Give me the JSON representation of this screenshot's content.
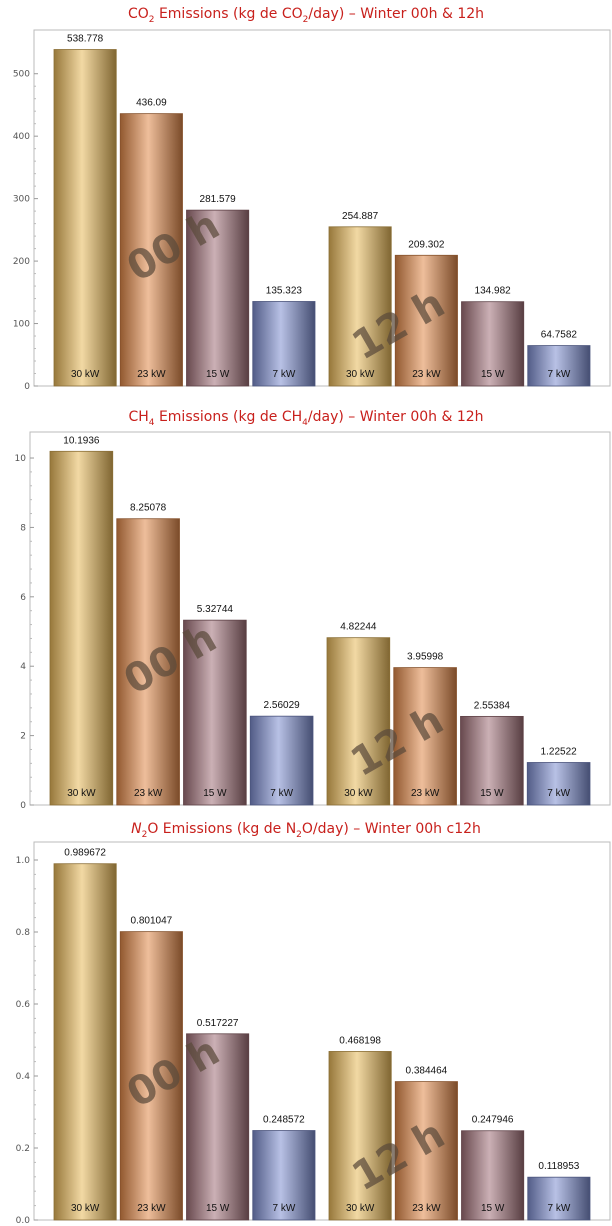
{
  "colors": {
    "title": "#c8201c",
    "gold": "#e8b95a",
    "orange": "#e0894a",
    "mauve": "#a07078",
    "blue": "#7e8ed0"
  },
  "chart_data": [
    {
      "type": "bar",
      "title": {
        "pre": "CO",
        "sub": "2",
        "mid": " Emissions (kg de CO",
        "sub2": "2",
        "post": "/day) – Winter 00h & 12h"
      },
      "groups": [
        "00 h",
        "12 h"
      ],
      "categories": [
        "30 kW",
        "23 kW",
        "15 W",
        "7 kW",
        "30 kW",
        "23 kW",
        "15 W",
        "7 kW"
      ],
      "values": [
        538.778,
        436.09,
        281.579,
        135.323,
        254.887,
        209.302,
        134.982,
        64.7582
      ],
      "value_labels": [
        "538.778",
        "436.09",
        "281.579",
        "135.323",
        "254.887",
        "209.302",
        "134.982",
        "64.7582"
      ],
      "ylim": [
        0,
        570
      ],
      "yticks": [
        0,
        100,
        200,
        300,
        400,
        500
      ],
      "ytick_labels": [
        "0",
        "100",
        "200",
        "300",
        "400",
        "500"
      ]
    },
    {
      "type": "bar",
      "title": {
        "pre": "CH",
        "sub": "4",
        "mid": "  Emissions (kg de CH",
        "sub2": "4",
        "post": "/day) – Winter 00h & 12h"
      },
      "groups": [
        "00 h",
        "12 h"
      ],
      "categories": [
        "30 kW",
        "23 kW",
        "15 W",
        "7 kW",
        "30 kW",
        "23 kW",
        "15 W",
        "7 kW"
      ],
      "values": [
        10.1936,
        8.25078,
        5.32744,
        2.56029,
        4.82244,
        3.95998,
        2.55384,
        1.22522
      ],
      "value_labels": [
        "10.1936",
        "8.25078",
        "5.32744",
        "2.56029",
        "4.82244",
        "3.95998",
        "2.55384",
        "1.22522"
      ],
      "ylim": [
        0,
        10.75
      ],
      "yticks": [
        0,
        2,
        4,
        6,
        8,
        10
      ],
      "ytick_labels": [
        "0",
        "2",
        "4",
        "6",
        "8",
        "10"
      ]
    },
    {
      "type": "bar",
      "title": {
        "pre": "N",
        "sub": "2",
        "mid": "O Emissions (kg de N",
        "sub2": "2",
        "post": "O/day) – Winter 00h c12h"
      },
      "groups": [
        "00 h",
        "12 h"
      ],
      "categories": [
        "30 kW",
        "23 kW",
        "15 W",
        "7 kW",
        "30 kW",
        "23 kW",
        "15 W",
        "7 kW"
      ],
      "values": [
        0.989672,
        0.801047,
        0.517227,
        0.248572,
        0.468198,
        0.384464,
        0.247946,
        0.118953
      ],
      "value_labels": [
        "0.989672",
        "0.801047",
        "0.517227",
        "0.248572",
        "0.468198",
        "0.384464",
        "0.247946",
        "0.118953"
      ],
      "ylim": [
        0,
        1.05
      ],
      "yticks": [
        0,
        0.2,
        0.4,
        0.6,
        0.8,
        1.0
      ],
      "ytick_labels": [
        "0.0",
        "0.2",
        "0.4",
        "0.6",
        "0.8",
        "1.0"
      ]
    }
  ]
}
